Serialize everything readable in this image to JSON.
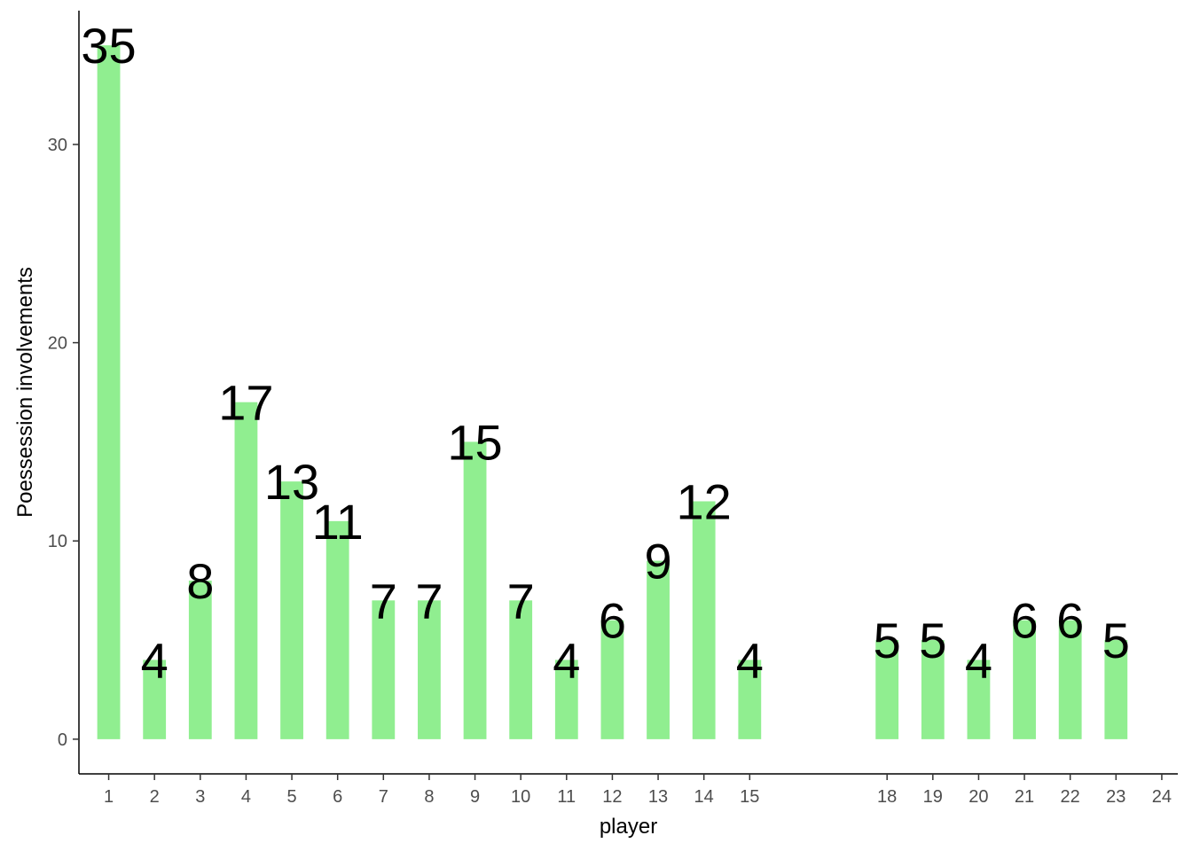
{
  "chart_data": {
    "type": "bar",
    "x": [
      1,
      2,
      3,
      4,
      5,
      6,
      7,
      8,
      9,
      10,
      11,
      12,
      13,
      14,
      15,
      18,
      19,
      20,
      21,
      22,
      23
    ],
    "values": [
      35,
      4,
      8,
      17,
      13,
      11,
      7,
      7,
      15,
      7,
      4,
      6,
      9,
      12,
      4,
      5,
      5,
      4,
      6,
      6,
      5
    ],
    "data_labels": [
      "35",
      "4",
      "8",
      "17",
      "13",
      "11",
      "7",
      "7",
      "15",
      "7",
      "4",
      "6",
      "9",
      "12",
      "4",
      "5",
      "5",
      "4",
      "6",
      "6",
      "5"
    ],
    "x_ticks": [
      1,
      2,
      3,
      4,
      5,
      6,
      7,
      8,
      9,
      10,
      11,
      12,
      13,
      14,
      15,
      18,
      19,
      20,
      21,
      22,
      23,
      24
    ],
    "x_tick_labels": [
      "1",
      "2",
      "3",
      "4",
      "5",
      "6",
      "7",
      "8",
      "9",
      "10",
      "11",
      "12",
      "13",
      "14",
      "15",
      "18",
      "19",
      "20",
      "21",
      "22",
      "23",
      "24"
    ],
    "y_ticks": [
      0,
      10,
      20,
      30
    ],
    "y_tick_labels": [
      "0",
      "10",
      "20",
      "30"
    ],
    "xlabel": "player",
    "ylabel": "Poessession involvements",
    "title": "",
    "xlim": [
      0.35,
      24.35
    ],
    "ylim": [
      -1.75,
      36.75
    ],
    "grid": false,
    "legend": "none",
    "bar_color": "#90EE90",
    "text_color": "#000000",
    "tick_color": "#4d4d4d"
  }
}
